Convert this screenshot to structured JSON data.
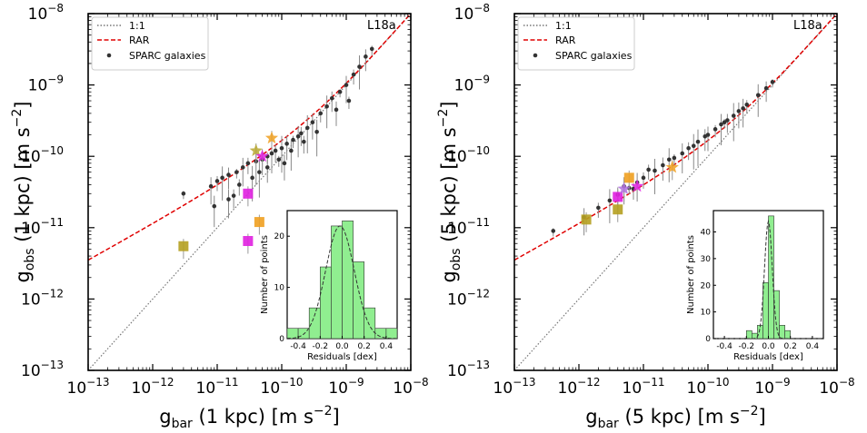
{
  "chart_data": [
    {
      "type": "scatter",
      "panel": "left",
      "xscale": "log",
      "yscale": "log",
      "xlim": [
        1e-13,
        1e-08
      ],
      "ylim": [
        1e-13,
        1e-08
      ],
      "xlabel": "g_bar (1 kpc) [m s^-2]",
      "ylabel": "g_obs (1 kpc) [m s^-2]",
      "tag": "L18a",
      "legend": {
        "placement": "top-left",
        "items": [
          "1:1",
          "RAR",
          "SPARC galaxies"
        ]
      },
      "rar_g_dagger": 1.2e-10,
      "series_sparc": {
        "name": "SPARC galaxies",
        "x": [
          3e-12,
          8e-12,
          1e-11,
          1.2e-11,
          1.5e-11,
          2e-11,
          2.5e-11,
          3e-11,
          4e-11,
          5e-11,
          6e-11,
          7e-11,
          8e-11,
          1e-10,
          1.2e-10,
          1.5e-10,
          1.8e-10,
          2e-10,
          2.5e-10,
          3e-10,
          4e-10,
          5e-10,
          6e-10,
          8e-10,
          1e-09,
          1.3e-09,
          1.6e-09,
          2e-09,
          2.5e-09,
          1.5e-11,
          2.2e-11,
          3.5e-11,
          6e-11,
          9e-11,
          1.4e-10,
          2.2e-10,
          3.5e-10,
          7e-10,
          1.1e-09,
          9e-12,
          1.8e-11,
          4.5e-11,
          1.1e-10
        ],
        "y": [
          3e-11,
          3.8e-11,
          4.5e-11,
          5e-11,
          5.5e-11,
          6e-11,
          7e-11,
          8e-11,
          8.5e-11,
          9e-11,
          1e-10,
          1.1e-10,
          1.2e-10,
          1.3e-10,
          1.5e-10,
          1.7e-10,
          1.9e-10,
          2.1e-10,
          2.5e-10,
          3e-10,
          4e-10,
          5e-10,
          6.5e-10,
          8e-10,
          1e-09,
          1.4e-09,
          1.8e-09,
          2.5e-09,
          3.2e-09,
          2.5e-11,
          4e-11,
          5e-11,
          7e-11,
          9e-11,
          1.2e-10,
          1.6e-10,
          2.2e-10,
          4.5e-10,
          6e-10,
          2e-11,
          2.8e-11,
          6e-11,
          8e-11
        ]
      },
      "series_highlight": {
        "x": [
          3e-12,
          3e-11,
          4.5e-11,
          4e-11,
          7e-11,
          5e-11,
          3e-11
        ],
        "y": [
          5.5e-12,
          6.5e-12,
          1.2e-11,
          1.2e-10,
          1.8e-10,
          1e-10,
          3e-11
        ],
        "markers": [
          "square",
          "square",
          "square",
          "star",
          "star",
          "star",
          "square"
        ],
        "colors": [
          "#B5A020",
          "#E020E0",
          "#F0A020",
          "#B8A830",
          "#F0A020",
          "#E020E0",
          "#E020E0"
        ]
      },
      "inset": {
        "type": "bar",
        "xlabel": "Residuals [dex]",
        "ylabel": "Number of points",
        "xlim": [
          -0.5,
          0.5
        ],
        "ylim": [
          0,
          25
        ],
        "xticks": [
          "-0.4",
          "-0.2",
          "0.0",
          "0.2",
          "0.4"
        ],
        "yticks": [
          "0",
          "10",
          "20"
        ],
        "bin_edges": [
          -0.5,
          -0.4,
          -0.3,
          -0.2,
          -0.1,
          0.0,
          0.1,
          0.2,
          0.3,
          0.4,
          0.5
        ],
        "counts": [
          2,
          2,
          6,
          14,
          22,
          23,
          15,
          6,
          2,
          2
        ],
        "gauss": {
          "mu": -0.02,
          "sigma": 0.13,
          "amp": 22
        }
      },
      "xticks": [
        "10^-13",
        "10^-12",
        "10^-11",
        "10^-10",
        "10^-9",
        "10^-8"
      ],
      "yticks": [
        "10^-13",
        "10^-12",
        "10^-11",
        "10^-10",
        "10^-9",
        "10^-8"
      ]
    },
    {
      "type": "scatter",
      "panel": "right",
      "xscale": "log",
      "yscale": "log",
      "xlim": [
        1e-13,
        1e-08
      ],
      "ylim": [
        1e-13,
        1e-08
      ],
      "xlabel": "g_bar (5 kpc) [m s^-2]",
      "ylabel": "g_obs (5 kpc) [m s^-2]",
      "tag": "L18a",
      "legend": {
        "placement": "top-left",
        "items": [
          "1:1",
          "RAR",
          "SPARC galaxies"
        ]
      },
      "rar_g_dagger": 1.2e-10,
      "series_sparc": {
        "name": "SPARC galaxies",
        "x": [
          4e-13,
          1.2e-12,
          2e-12,
          3e-12,
          4e-12,
          6e-12,
          8e-12,
          1e-11,
          1.5e-11,
          2e-11,
          3e-11,
          4e-11,
          5e-11,
          7e-11,
          1e-10,
          1.3e-10,
          1.6e-10,
          2e-10,
          2.5e-10,
          3e-10,
          4e-10,
          6e-10,
          8e-10,
          1e-09,
          5e-12,
          1.2e-11,
          2.5e-11,
          9e-11,
          1.8e-10,
          3.5e-10,
          7e-12,
          6e-11
        ],
        "y": [
          9e-12,
          1.4e-11,
          1.9e-11,
          2.4e-11,
          2.9e-11,
          3.6e-11,
          4.3e-11,
          5e-11,
          6.3e-11,
          7.5e-11,
          9.5e-11,
          1.1e-10,
          1.3e-10,
          1.6e-10,
          2e-10,
          2.4e-10,
          2.8e-10,
          3.2e-10,
          3.7e-10,
          4.3e-10,
          5.3e-10,
          7.2e-10,
          9e-10,
          1.1e-09,
          3.8e-11,
          6.5e-11,
          9e-11,
          1.9e-10,
          3e-10,
          4.7e-10,
          3.5e-11,
          1.4e-10
        ]
      },
      "series_highlight": {
        "x": [
          1.3e-12,
          6e-12,
          4e-12,
          8e-12,
          2.8e-11,
          5e-12,
          4e-12
        ],
        "y": [
          1.3e-11,
          5e-11,
          2.7e-11,
          3.8e-11,
          7e-11,
          3.5e-11,
          1.8e-11
        ],
        "markers": [
          "square",
          "square",
          "square",
          "star",
          "star",
          "star",
          "square"
        ],
        "colors": [
          "#B5A020",
          "#F0A020",
          "#E020E0",
          "#E020E0",
          "#F0A020",
          "#B070E0",
          "#B5A020"
        ]
      },
      "inset": {
        "type": "bar",
        "xlabel": "Residuals [dex]",
        "ylabel": "Number of points",
        "xlim": [
          -0.5,
          0.5
        ],
        "ylim": [
          0,
          48
        ],
        "xticks": [
          "-0.4",
          "-0.2",
          "0.0",
          "0.2",
          "0.4"
        ],
        "yticks": [
          "0",
          "10",
          "20",
          "30",
          "40"
        ],
        "bin_edges": [
          -0.2,
          -0.15,
          -0.1,
          -0.05,
          0.0,
          0.05,
          0.1,
          0.15,
          0.2
        ],
        "counts": [
          3,
          2,
          5,
          21,
          46,
          18,
          5,
          3
        ],
        "gauss": {
          "mu": 0.0,
          "sigma": 0.035,
          "amp": 44
        }
      },
      "xticks": [
        "10^-13",
        "10^-12",
        "10^-11",
        "10^-10",
        "10^-9",
        "10^-8"
      ],
      "yticks": [
        "10^-13",
        "10^-12",
        "10^-11",
        "10^-10",
        "10^-9",
        "10^-8"
      ]
    }
  ],
  "labels": {
    "left": {
      "ylabel_main": "g",
      "ylabel_sub": "obs",
      "ylabel_rest": " (1 kpc) [m s",
      "ylabel_exp": "−2",
      "ylabel_end": "]",
      "xlabel_main": "g",
      "xlabel_sub": "bar",
      "xlabel_rest": " (1 kpc) [m s",
      "xlabel_exp": "−2",
      "xlabel_end": "]"
    },
    "right": {
      "ylabel_main": "g",
      "ylabel_sub": "obs",
      "ylabel_rest": " (5 kpc) [m s",
      "ylabel_exp": "−2",
      "ylabel_end": "]",
      "xlabel_main": "g",
      "xlabel_sub": "bar",
      "xlabel_rest": " (5 kpc) [m s",
      "xlabel_exp": "−2",
      "xlabel_end": "]"
    },
    "tag": "L18a",
    "legend": [
      "1:1",
      "RAR",
      "SPARC galaxies"
    ],
    "inset_xlabel": "Residuals [dex]",
    "inset_ylabel": "Number of points"
  },
  "colors": {
    "rar": "#e00000",
    "one_to_one": "#777777",
    "points": "#333333",
    "errorbar": "#888888",
    "hist": "#90EE90",
    "hist_edge": "#333333"
  }
}
